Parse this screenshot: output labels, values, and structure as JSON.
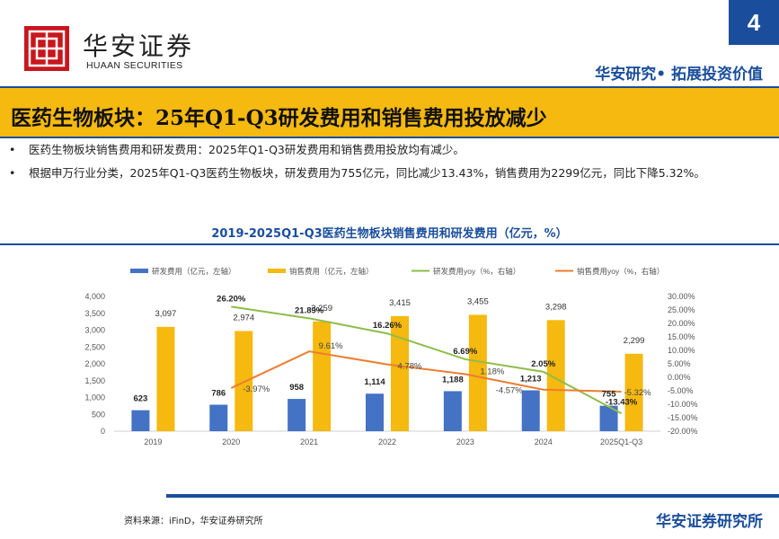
{
  "header": {
    "logo_cn": "华安证券",
    "logo_en": "HUAAN SECURITIES",
    "page_number": "4",
    "tag": "华安研究• 拓展投资价值"
  },
  "title": "医药生物板块：25年Q1-Q3研发费用和销售费用投放减少",
  "bullets": [
    "医药生物板块销售费用和研发费用：2025年Q1-Q3研发费用和销售费用投放均有减少。",
    "根据申万行业分类，2025年Q1-Q3医药生物板块，研发费用为755亿元，同比减少13.43%，销售费用为2299亿元，同比下降5.32%。"
  ],
  "bullet_symbol": "•",
  "chart_title": "2019-2025Q1-Q3医药生物板块销售费用和研发费用（亿元，%）",
  "chart_data": {
    "type": "bar",
    "categories": [
      "2019",
      "2020",
      "2021",
      "2022",
      "2023",
      "2024",
      "2025Q1-Q3"
    ],
    "series": [
      {
        "name": "研发费用（亿元，左轴）",
        "kind": "bar",
        "axis": "left",
        "color": "#4472c4",
        "values": [
          623,
          786,
          958,
          1114,
          1188,
          1213,
          755
        ],
        "labels": [
          "623",
          "786",
          "958",
          "1,114",
          "1,188",
          "1,213",
          "755"
        ]
      },
      {
        "name": "销售费用（亿元，左轴）",
        "kind": "bar",
        "axis": "left",
        "color": "#f5b90f",
        "values": [
          3097,
          2974,
          3259,
          3415,
          3455,
          3298,
          2299
        ],
        "labels": [
          "3,097",
          "2,974",
          "3,259",
          "3,415",
          "3,455",
          "3,298",
          "2,299"
        ]
      },
      {
        "name": "研发费用yoy（%，右轴）",
        "kind": "line",
        "axis": "right",
        "color": "#8fbc4a",
        "values": [
          null,
          26.2,
          21.89,
          16.26,
          6.69,
          2.05,
          -13.43
        ],
        "labels": [
          "",
          "26.20%",
          "21.89%",
          "16.26%",
          "6.69%",
          "2.05%",
          "-13.43%"
        ]
      },
      {
        "name": "销售费用yoy（%，右轴）",
        "kind": "line",
        "axis": "right",
        "color": "#ed7d31",
        "values": [
          null,
          -3.97,
          9.61,
          4.78,
          1.18,
          -4.57,
          -5.32
        ],
        "labels": [
          "",
          "-3.97%",
          "9.61%",
          "4.78%",
          "1.18%",
          "-4.57%",
          "-5.32%"
        ]
      }
    ],
    "ylim_left": [
      0,
      4000
    ],
    "left_ticks": [
      "0",
      "500",
      "1,000",
      "1,500",
      "2,000",
      "2,500",
      "3,000",
      "3,500",
      "4,000"
    ],
    "ylim_right": [
      -20,
      30
    ],
    "right_ticks": [
      "-20.00%",
      "-15.00%",
      "-10.00%",
      "-5.00%",
      "0.00%",
      "5.00%",
      "10.00%",
      "15.00%",
      "20.00%",
      "25.00%",
      "30.00%"
    ],
    "legend": "top"
  },
  "footer": {
    "source": "资料来源：iFinD，华安证券研究所",
    "brand": "华安证券研究所"
  }
}
